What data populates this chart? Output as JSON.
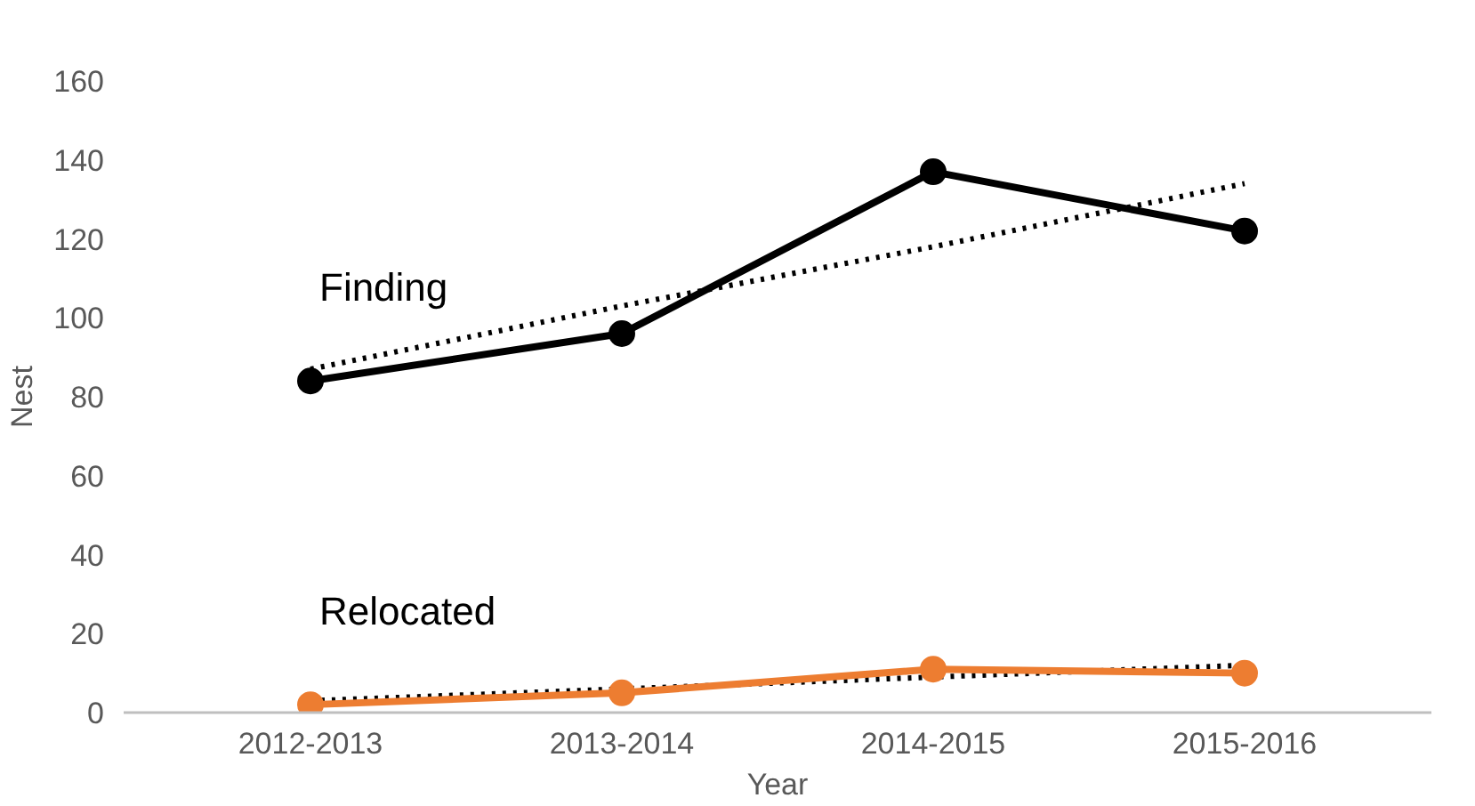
{
  "chart_data": {
    "type": "line",
    "xlabel": "Year",
    "ylabel": "Nest",
    "categories": [
      "2012-2013",
      "2013-2014",
      "2014-2015",
      "2015-2016"
    ],
    "ylim": [
      0,
      160
    ],
    "yticks": [
      0,
      20,
      40,
      60,
      80,
      100,
      120,
      140,
      160
    ],
    "grid": false,
    "legend": false,
    "marker": "circle",
    "line_style": "solid",
    "series": [
      {
        "type": "line",
        "line_style": "dotted",
        "marker": "none",
        "color": "#000000",
        "values": [
          87,
          103,
          118,
          134
        ]
      },
      {
        "type": "line",
        "line_style": "dotted",
        "marker": "none",
        "color": "#000000",
        "values": [
          3,
          6,
          9,
          12
        ]
      },
      {
        "name": "Finding",
        "color": "#000000",
        "values": [
          84,
          96,
          137,
          122
        ]
      },
      {
        "name": "Relocated",
        "color": "#ed7d31",
        "values": [
          2,
          5,
          11,
          10
        ]
      }
    ]
  }
}
